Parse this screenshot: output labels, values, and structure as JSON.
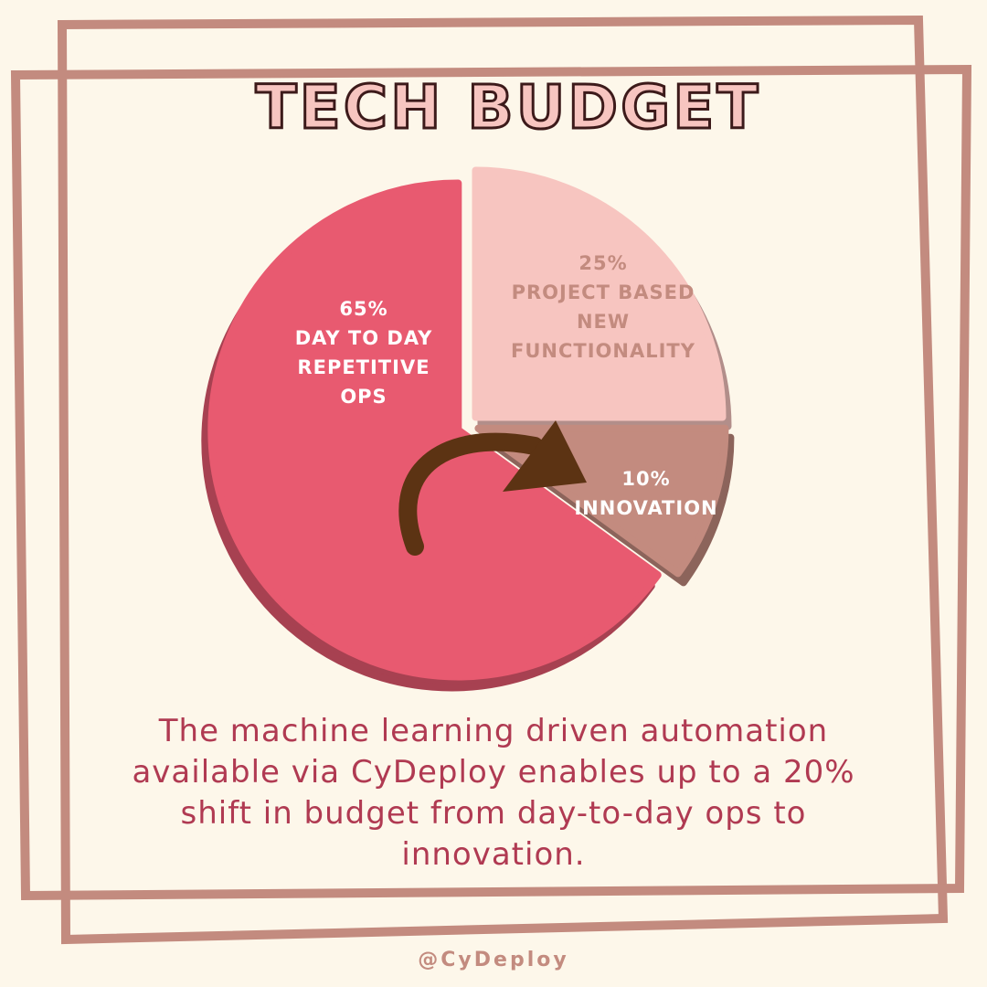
{
  "title": "TECH BUDGET",
  "chart_data": {
    "type": "pie",
    "categories": [
      "DAY TO DAY REPETITIVE OPS",
      "PROJECT BASED NEW FUNCTIONALITY",
      "INNOVATION"
    ],
    "values": [
      65,
      25,
      10
    ],
    "value_labels": [
      "65%",
      "25%",
      "10%"
    ],
    "colors": [
      "#e85a70",
      "#f7c5c0",
      "#c38b7f"
    ]
  },
  "caption": "The machine learning driven automation available via CyDeploy enables up to a 20% shift in budget from day-to-day ops to innovation.",
  "footer": "@CyDeploy"
}
